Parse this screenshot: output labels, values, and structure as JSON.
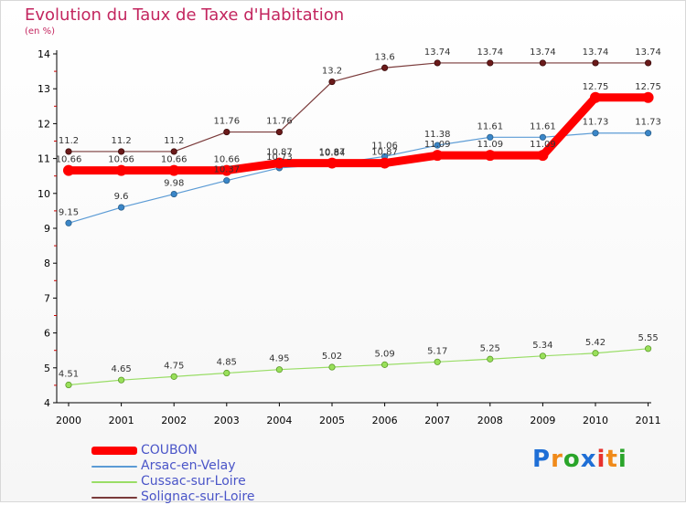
{
  "title": "Evolution du Taux de Taxe d'Habitation",
  "subtitle": "(en %)",
  "logo": {
    "text": "Proxiti",
    "letter_colors": [
      "#1f6fd6",
      "#f08a1a",
      "#2aa52a",
      "#1f6fd6",
      "#e8322d",
      "#f08a1a",
      "#2aa52a"
    ]
  },
  "chart_data": {
    "type": "line",
    "x": [
      "2000",
      "2001",
      "2002",
      "2003",
      "2004",
      "2005",
      "2006",
      "2007",
      "2008",
      "2009",
      "2010",
      "2011"
    ],
    "ylim": [
      4,
      14
    ],
    "yticks": [
      "4",
      "5",
      "6",
      "7",
      "8",
      "9",
      "10",
      "11",
      "12",
      "13",
      "14"
    ],
    "grid": false,
    "legend": "bottom-left",
    "series": [
      {
        "name": "COUBON",
        "color": "#ff0000",
        "values": [
          10.66,
          10.66,
          10.66,
          10.66,
          10.87,
          10.87,
          10.87,
          11.09,
          11.09,
          11.09,
          12.75,
          12.75
        ],
        "labels": [
          "10.66",
          "10.66",
          "10.66",
          "10.66",
          "10.87",
          "10.87",
          "10.87",
          "11.09",
          "11.09",
          "11.09",
          "12.75",
          "12.75"
        ]
      },
      {
        "name": "Arsac-en-Velay",
        "color": "#5b9bd5",
        "values": [
          9.15,
          9.6,
          9.98,
          10.37,
          10.73,
          10.84,
          11.06,
          11.38,
          11.61,
          11.61,
          11.73,
          11.73
        ],
        "labels": [
          "9.15",
          "9.6",
          "9.98",
          "10.37",
          "10.73",
          "10.84",
          "11.06",
          "11.38",
          "11.61",
          "11.61",
          "11.73",
          "11.73"
        ]
      },
      {
        "name": "Cussac-sur-Loire",
        "color": "#99dd66",
        "values": [
          4.51,
          4.65,
          4.75,
          4.85,
          4.95,
          5.02,
          5.09,
          5.17,
          5.25,
          5.34,
          5.42,
          5.55
        ],
        "labels": [
          "4.51",
          "4.65",
          "4.75",
          "4.85",
          "4.95",
          "5.02",
          "5.09",
          "5.17",
          "5.25",
          "5.34",
          "5.42",
          "5.55"
        ]
      },
      {
        "name": "Solignac-sur-Loire",
        "color": "#7a3a3a",
        "values": [
          11.2,
          11.2,
          11.2,
          11.76,
          11.76,
          13.2,
          13.6,
          13.74,
          13.74,
          13.74,
          13.74,
          13.74
        ],
        "labels": [
          "11.2",
          "11.2",
          "11.2",
          "11.76",
          "11.76",
          "13.2",
          "13.6",
          "13.74",
          "13.74",
          "13.74",
          "13.74",
          "13.74"
        ]
      }
    ]
  }
}
